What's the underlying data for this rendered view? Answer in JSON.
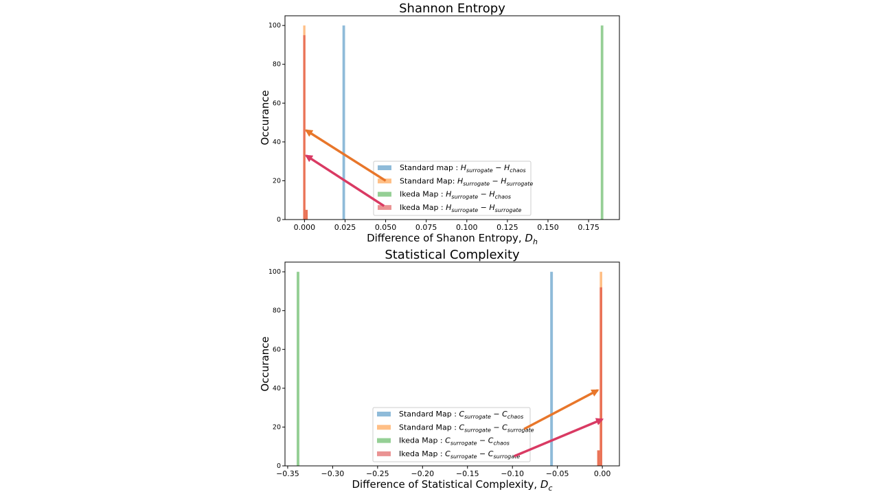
{
  "chart_data": [
    {
      "type": "bar",
      "title": "Shannon Entropy",
      "xlabel": "Difference of Shanon Entropy, ",
      "xlabel_math": "D",
      "xlabel_sub": "h",
      "ylabel": "Occurance",
      "xlim": [
        -0.012,
        0.194
      ],
      "ylim": [
        0,
        105
      ],
      "xticks": [
        0.0,
        0.025,
        0.05,
        0.075,
        0.1,
        0.125,
        0.15,
        0.175
      ],
      "xtick_labels": [
        "0.000",
        "0.025",
        "0.050",
        "0.075",
        "0.100",
        "0.125",
        "0.150",
        "0.175"
      ],
      "yticks": [
        0,
        20,
        40,
        60,
        80,
        100
      ],
      "ytick_labels": [
        "0",
        "20",
        "40",
        "60",
        "80",
        "100"
      ],
      "series": [
        {
          "name": "Standard map : H_surrogate − H_chaos",
          "legend_label": "Standard map : ",
          "legend_math": [
            {
              "t": "H",
              "s": "surrogate"
            },
            {
              "op": " − "
            },
            {
              "t": "H",
              "s": "chaos"
            }
          ],
          "color": "#1f77b4",
          "bars": [
            {
              "x": 0.0242,
              "width": 0.0016,
              "height": 100
            }
          ]
        },
        {
          "name": "Standard Map: H_surrogate − H_surrogate",
          "legend_label": "Standard Map: ",
          "legend_math": [
            {
              "t": "H",
              "s": "surrogate"
            },
            {
              "op": " − "
            },
            {
              "t": "H",
              "s": "surrogate"
            }
          ],
          "color": "#ff7f0e",
          "bars": [
            {
              "x": -0.0001,
              "width": 0.0014,
              "height": 100
            },
            {
              "x": 0.0013,
              "width": 0.0014,
              "height": 5
            }
          ]
        },
        {
          "name": "Ikeda Map : H_surrogate − H_chaos",
          "legend_label": "Ikeda Map : ",
          "legend_math": [
            {
              "t": "H",
              "s": "surrogate"
            },
            {
              "op": " − "
            },
            {
              "t": "H",
              "s": "chaos"
            }
          ],
          "color": "#2ca02c",
          "bars": [
            {
              "x": 0.1833,
              "width": 0.0016,
              "height": 100
            }
          ]
        },
        {
          "name": "Ikeda Map : H_surrogate − H_surrogate",
          "legend_label": "Ikeda Map : ",
          "legend_math": [
            {
              "t": "H",
              "s": "surrogate"
            },
            {
              "op": " − "
            },
            {
              "t": "H",
              "s": "surrogate"
            }
          ],
          "color": "#d62728",
          "bars": [
            {
              "x": -0.0001,
              "width": 0.0014,
              "height": 95
            },
            {
              "x": 0.0013,
              "width": 0.0014,
              "height": 5
            }
          ]
        }
      ],
      "legend_position": "lower center",
      "annotations": [
        {
          "from": [
            0.05,
            20
          ],
          "to": [
            0.001,
            46
          ],
          "color": "#e8762a"
        },
        {
          "from": [
            0.049,
            7
          ],
          "to": [
            0.001,
            33
          ],
          "color": "#d93a63"
        }
      ]
    },
    {
      "type": "bar",
      "title": "Statistical Complexity",
      "xlabel": "Difference of Statistical Complexity, ",
      "xlabel_math": "D",
      "xlabel_sub": "c",
      "ylabel": "Occurance",
      "xlim": [
        -0.353,
        0.019
      ],
      "ylim": [
        0,
        105
      ],
      "xticks": [
        -0.35,
        -0.3,
        -0.25,
        -0.2,
        -0.15,
        -0.1,
        -0.05,
        0.0
      ],
      "xtick_labels": [
        "−0.35",
        "−0.30",
        "−0.25",
        "−0.20",
        "−0.15",
        "−0.10",
        "−0.05",
        "0.00"
      ],
      "yticks": [
        0,
        20,
        40,
        60,
        80,
        100
      ],
      "ytick_labels": [
        "0",
        "20",
        "40",
        "60",
        "80",
        "100"
      ],
      "series": [
        {
          "name": "Standard Map : C_surrogate − C_chaos",
          "legend_label": "Standard Map : ",
          "legend_math": [
            {
              "t": "C",
              "s": "surrogate"
            },
            {
              "op": " − "
            },
            {
              "t": "C",
              "s": "chaos"
            }
          ],
          "color": "#1f77b4",
          "bars": [
            {
              "x": -0.0565,
              "width": 0.003,
              "height": 100
            }
          ]
        },
        {
          "name": "Standard Map : C_surrogate − C_surrogate",
          "legend_label": "Standard Map : ",
          "legend_math": [
            {
              "t": "C",
              "s": "surrogate"
            },
            {
              "op": " − "
            },
            {
              "t": "C",
              "s": "surrogate"
            }
          ],
          "color": "#ff7f0e",
          "bars": [
            {
              "x": -0.0015,
              "width": 0.0028,
              "height": 100
            },
            {
              "x": -0.0043,
              "width": 0.0028,
              "height": 8
            }
          ]
        },
        {
          "name": "Ikeda Map : C_surrogate − C_chaos",
          "legend_label": "Ikeda Map : ",
          "legend_math": [
            {
              "t": "C",
              "s": "surrogate"
            },
            {
              "op": " − "
            },
            {
              "t": "C",
              "s": "chaos"
            }
          ],
          "color": "#2ca02c",
          "bars": [
            {
              "x": -0.3385,
              "width": 0.003,
              "height": 100
            }
          ]
        },
        {
          "name": "Ikeda Map : C_surrogate − C_surrogate",
          "legend_label": "Ikeda Map : ",
          "legend_math": [
            {
              "t": "C",
              "s": "surrogate"
            },
            {
              "op": " − "
            },
            {
              "t": "C",
              "s": "surrogate"
            }
          ],
          "color": "#d62728",
          "bars": [
            {
              "x": -0.0015,
              "width": 0.0028,
              "height": 92
            },
            {
              "x": -0.0043,
              "width": 0.0028,
              "height": 8
            }
          ]
        }
      ],
      "legend_position": "lower center",
      "annotations": [
        {
          "from": [
            -0.087,
            19
          ],
          "to": [
            -0.005,
            39
          ],
          "color": "#e8762a"
        },
        {
          "from": [
            -0.098,
            5
          ],
          "to": [
            0.0,
            24
          ],
          "color": "#d93a63"
        }
      ]
    }
  ]
}
